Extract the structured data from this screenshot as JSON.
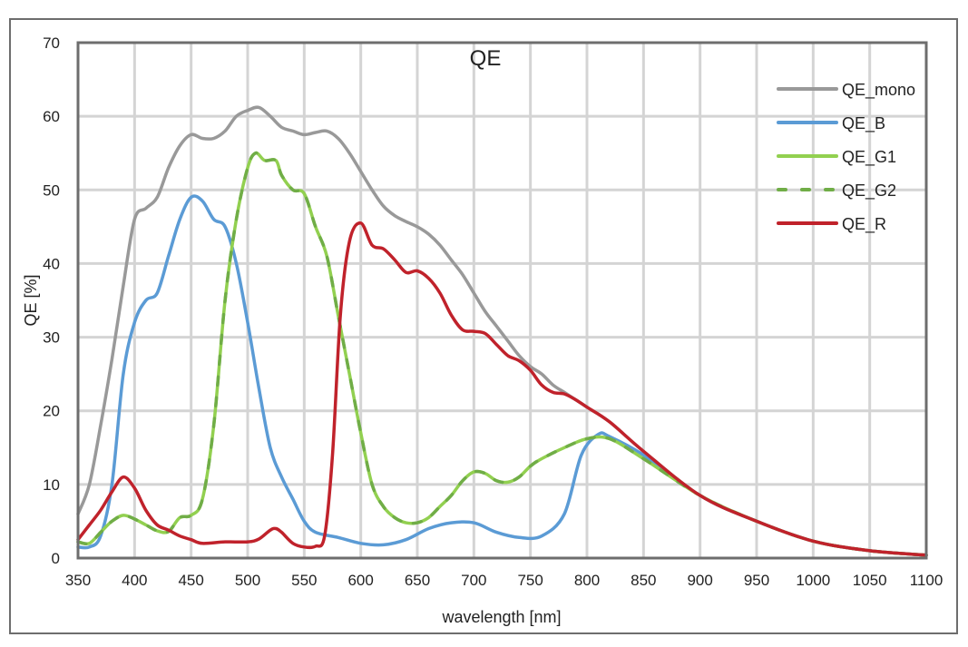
{
  "chart_data": {
    "type": "line",
    "title": "QE",
    "xlabel": "wavelength [nm]",
    "ylabel": "QE [%]",
    "xlim": [
      350,
      1100
    ],
    "ylim": [
      0,
      70
    ],
    "xticks": [
      350,
      400,
      450,
      500,
      550,
      600,
      650,
      700,
      750,
      800,
      850,
      900,
      950,
      1000,
      1050,
      1100
    ],
    "yticks": [
      0,
      10,
      20,
      30,
      40,
      50,
      60,
      70
    ],
    "grid": true,
    "legend_position": "top-right",
    "series": [
      {
        "name": "QE_mono",
        "color": "#999999",
        "dash": false,
        "x": [
          350,
          360,
          370,
          380,
          390,
          400,
          410,
          420,
          430,
          440,
          450,
          460,
          470,
          480,
          490,
          500,
          510,
          520,
          530,
          540,
          550,
          560,
          570,
          580,
          590,
          600,
          610,
          620,
          630,
          640,
          650,
          660,
          670,
          680,
          690,
          700,
          710,
          720,
          730,
          740,
          750,
          760,
          770,
          780,
          790,
          800,
          820,
          850,
          900,
          950,
          1000,
          1050,
          1100
        ],
        "y": [
          6,
          10,
          18,
          27,
          37,
          46,
          47.5,
          49,
          53,
          56,
          57.5,
          57,
          57,
          58,
          60,
          60.8,
          61.2,
          60,
          58.5,
          58,
          57.5,
          57.8,
          58,
          57,
          55,
          52.5,
          50,
          47.8,
          46.5,
          45.7,
          45,
          44,
          42.5,
          40.5,
          38.5,
          36,
          33.5,
          31.5,
          29.5,
          27.5,
          26,
          25,
          23.5,
          22.5,
          21.5,
          20.5,
          18.5,
          14.5,
          8.5,
          5,
          2.3,
          1,
          0.4
        ]
      },
      {
        "name": "QE_B",
        "color": "#5b9bd5",
        "dash": false,
        "x": [
          350,
          360,
          370,
          380,
          390,
          400,
          410,
          420,
          430,
          440,
          450,
          460,
          470,
          480,
          490,
          500,
          510,
          520,
          530,
          540,
          550,
          560,
          580,
          600,
          620,
          640,
          660,
          680,
          700,
          720,
          740,
          760,
          780,
          795,
          810,
          820,
          850,
          900,
          950,
          1000,
          1050,
          1100
        ],
        "y": [
          1.5,
          1.5,
          3,
          10,
          25,
          32,
          35,
          36,
          41,
          46,
          49,
          48.5,
          46,
          45,
          40,
          32,
          23,
          15,
          11,
          8,
          5,
          3.5,
          2.8,
          2,
          1.8,
          2.5,
          4,
          4.8,
          4.8,
          3.5,
          2.8,
          3,
          6,
          14,
          16.8,
          16.5,
          14,
          8.5,
          5,
          2.3,
          1,
          0.4
        ]
      },
      {
        "name": "QE_G1",
        "color": "#92d050",
        "dash": false,
        "x": [
          350,
          360,
          370,
          380,
          390,
          400,
          410,
          420,
          430,
          440,
          450,
          460,
          470,
          480,
          490,
          500,
          507,
          515,
          525,
          530,
          540,
          550,
          560,
          570,
          580,
          590,
          600,
          610,
          620,
          630,
          640,
          650,
          660,
          670,
          680,
          690,
          700,
          710,
          720,
          730,
          740,
          750,
          760,
          780,
          800,
          820,
          850,
          900,
          950,
          1000,
          1050,
          1100
        ],
        "y": [
          2.2,
          2,
          3.5,
          5,
          5.8,
          5.3,
          4.5,
          3.7,
          3.6,
          5.5,
          5.8,
          8,
          18,
          35,
          46,
          53,
          55,
          54,
          54,
          52,
          50,
          49.5,
          45,
          41,
          33,
          25,
          17,
          10,
          7,
          5.5,
          4.8,
          4.8,
          5.5,
          7,
          8.5,
          10.5,
          11.7,
          11.5,
          10.5,
          10.3,
          11,
          12.5,
          13.5,
          15,
          16.2,
          16.2,
          13.5,
          8.5,
          5,
          2.3,
          1,
          0.4
        ]
      },
      {
        "name": "QE_G2",
        "color": "#70ad47",
        "dash": true,
        "x": [
          350,
          360,
          370,
          380,
          390,
          400,
          410,
          420,
          430,
          440,
          450,
          460,
          470,
          480,
          490,
          500,
          507,
          515,
          525,
          530,
          540,
          550,
          560,
          570,
          580,
          590,
          600,
          610,
          620,
          630,
          640,
          650,
          660,
          670,
          680,
          690,
          700,
          710,
          720,
          730,
          740,
          750,
          760,
          780,
          800,
          820,
          850,
          900,
          950,
          1000,
          1050,
          1100
        ],
        "y": [
          2.2,
          2,
          3.5,
          5,
          5.8,
          5.3,
          4.5,
          3.7,
          3.6,
          5.5,
          5.8,
          8,
          18,
          35,
          46,
          53,
          55,
          54,
          54,
          52,
          50,
          49.5,
          45,
          41,
          33,
          25,
          17,
          10,
          7,
          5.5,
          4.8,
          4.8,
          5.5,
          7,
          8.5,
          10.5,
          11.7,
          11.5,
          10.5,
          10.3,
          11,
          12.5,
          13.5,
          15,
          16.2,
          16.2,
          13.5,
          8.5,
          5,
          2.3,
          1,
          0.4
        ]
      },
      {
        "name": "QE_R",
        "color": "#c0222b",
        "dash": false,
        "x": [
          350,
          360,
          370,
          380,
          390,
          400,
          410,
          420,
          430,
          440,
          450,
          460,
          480,
          500,
          510,
          520,
          525,
          530,
          540,
          550,
          560,
          568,
          575,
          582,
          590,
          600,
          610,
          620,
          630,
          640,
          650,
          660,
          670,
          680,
          690,
          700,
          710,
          720,
          730,
          740,
          750,
          760,
          770,
          780,
          790,
          800,
          820,
          850,
          900,
          950,
          1000,
          1050,
          1100
        ],
        "y": [
          2.5,
          4.5,
          6.5,
          9,
          11,
          9.5,
          6.5,
          4.5,
          3.8,
          3,
          2.5,
          2,
          2.2,
          2.2,
          2.6,
          3.8,
          4,
          3.5,
          2,
          1.5,
          1.6,
          3,
          14,
          33,
          43,
          45.5,
          42.5,
          42,
          40.5,
          38.8,
          39,
          38,
          36,
          33,
          31,
          30.8,
          30.5,
          29,
          27.5,
          26.8,
          25.5,
          23.5,
          22.5,
          22.3,
          21.5,
          20.5,
          18.5,
          14.5,
          8.5,
          5,
          2.3,
          1,
          0.4
        ]
      }
    ]
  }
}
